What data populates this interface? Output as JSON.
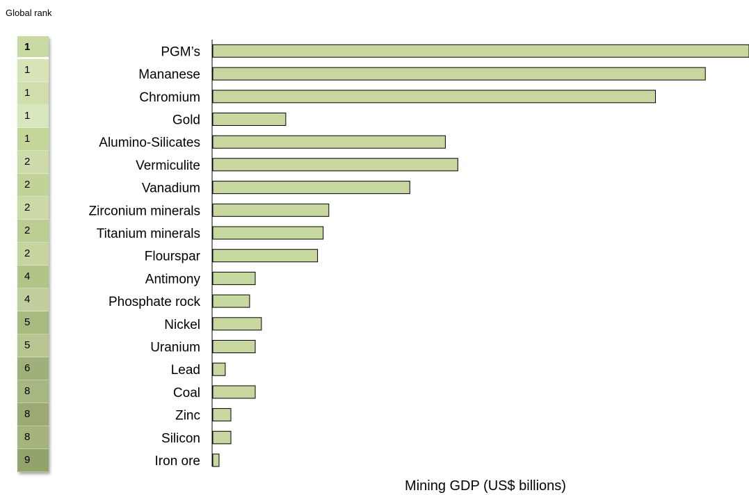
{
  "rank_panel": {
    "title": "Global rank",
    "ranks": [
      "1",
      "1",
      "1",
      "1",
      "1",
      "2",
      "2",
      "2",
      "2",
      "2",
      "4",
      "4",
      "5",
      "5",
      "6",
      "8",
      "8",
      "8",
      "9"
    ],
    "cell_colors": [
      "#c9d9a3",
      "#d6e4b8",
      "#cfdeac",
      "#d8e6bc",
      "#c5d69b",
      "#cddbab",
      "#c2d398",
      "#cbd9a7",
      "#bccd92",
      "#c6d59f",
      "#b3c489",
      "#c0cf9d",
      "#a9ba81",
      "#b7c690",
      "#a0b07a",
      "#a7b781",
      "#9aaa72",
      "#a4b47c",
      "#93a36c"
    ]
  },
  "chart_data": {
    "type": "bar",
    "orientation": "horizontal",
    "categories": [
      "PGM’s",
      "Mananese",
      "Chromium",
      "Gold",
      "Alumino-Silicates",
      "Vermiculite",
      "Vanadium",
      "Zirconium minerals",
      "Titanium minerals",
      "Flourspar",
      "Antimony",
      "Phosphate rock",
      "Nickel",
      "Uranium",
      "Lead",
      "Coal",
      "Zinc",
      "Silicon",
      "Iron ore"
    ],
    "values": [
      86.0,
      79.0,
      71.0,
      11.7,
      37.3,
      39.3,
      31.6,
      18.6,
      17.7,
      16.8,
      6.8,
      5.9,
      7.8,
      6.8,
      2.0,
      6.8,
      2.9,
      2.9,
      1.0
    ],
    "xlabel": "Mining GDP (US$ billions)",
    "xlim": [
      0,
      86
    ],
    "grid": false,
    "bar_color": "#c8d7a0",
    "bar_edge_color": "#000000"
  }
}
